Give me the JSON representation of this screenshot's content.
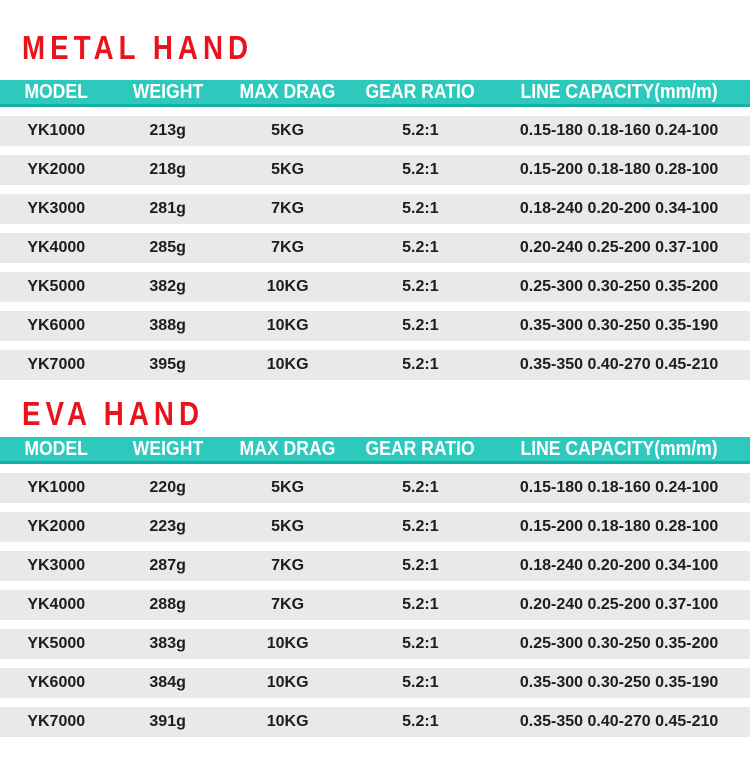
{
  "colors": {
    "accent_teal": "#2dc9bc",
    "accent_teal_dark": "#14b0a4",
    "title_red": "#e8131c",
    "row_gray": "#e9e9e9",
    "text_dark": "#1d1d1d",
    "header_text": "#ffffff"
  },
  "columns": [
    "MODEL",
    "WEIGHT",
    "MAX DRAG",
    "GEAR RATIO",
    "LINE CAPACITY(mm/m)"
  ],
  "tables": [
    {
      "title": "METAL HAND",
      "rows": [
        [
          "YK1000",
          "213g",
          "5KG",
          "5.2:1",
          "0.15-180 0.18-160 0.24-100"
        ],
        [
          "YK2000",
          "218g",
          "5KG",
          "5.2:1",
          "0.15-200 0.18-180 0.28-100"
        ],
        [
          "YK3000",
          "281g",
          "7KG",
          "5.2:1",
          "0.18-240 0.20-200 0.34-100"
        ],
        [
          "YK4000",
          "285g",
          "7KG",
          "5.2:1",
          "0.20-240 0.25-200 0.37-100"
        ],
        [
          "YK5000",
          "382g",
          "10KG",
          "5.2:1",
          "0.25-300 0.30-250 0.35-200"
        ],
        [
          "YK6000",
          "388g",
          "10KG",
          "5.2:1",
          "0.35-300 0.30-250 0.35-190"
        ],
        [
          "YK7000",
          "395g",
          "10KG",
          "5.2:1",
          "0.35-350 0.40-270 0.45-210"
        ]
      ]
    },
    {
      "title": "EVA HAND",
      "rows": [
        [
          "YK1000",
          "220g",
          "5KG",
          "5.2:1",
          "0.15-180 0.18-160 0.24-100"
        ],
        [
          "YK2000",
          "223g",
          "5KG",
          "5.2:1",
          "0.15-200 0.18-180 0.28-100"
        ],
        [
          "YK3000",
          "287g",
          "7KG",
          "5.2:1",
          "0.18-240 0.20-200 0.34-100"
        ],
        [
          "YK4000",
          "288g",
          "7KG",
          "5.2:1",
          "0.20-240 0.25-200 0.37-100"
        ],
        [
          "YK5000",
          "383g",
          "10KG",
          "5.2:1",
          "0.25-300 0.30-250 0.35-200"
        ],
        [
          "YK6000",
          "384g",
          "10KG",
          "5.2:1",
          "0.35-300 0.30-250 0.35-190"
        ],
        [
          "YK7000",
          "391g",
          "10KG",
          "5.2:1",
          "0.35-350 0.40-270 0.45-210"
        ]
      ]
    }
  ]
}
